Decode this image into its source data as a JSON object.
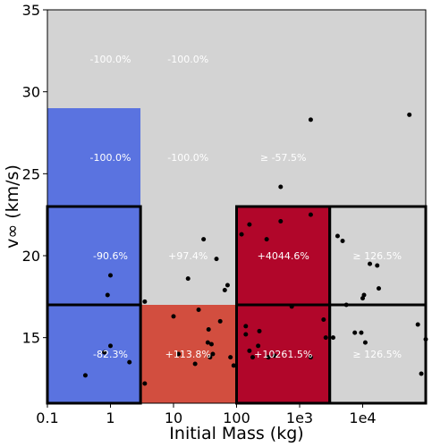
{
  "chart_data": {
    "type": "heatmap",
    "title": "",
    "xlabel": "Initial Mass (kg)",
    "ylabel": "v∞ (km/s)",
    "x_scale": "log",
    "xlim": [
      0.1,
      100000
    ],
    "ylim": [
      11,
      35
    ],
    "x_ticks": [
      {
        "value": 0.1,
        "label": "0.1"
      },
      {
        "value": 1,
        "label": "1"
      },
      {
        "value": 10,
        "label": "10"
      },
      {
        "value": 100,
        "label": "100"
      },
      {
        "value": 1000,
        "label": "1e3"
      },
      {
        "value": 10000,
        "label": "1e4"
      }
    ],
    "y_ticks": [
      {
        "value": 15,
        "label": "15"
      },
      {
        "value": 20,
        "label": "20"
      },
      {
        "value": 25,
        "label": "25"
      },
      {
        "value": 30,
        "label": "30"
      },
      {
        "value": 35,
        "label": "35"
      }
    ],
    "background_color": "#d3d3d3",
    "cells": [
      {
        "x0": 0.1,
        "x1": 3,
        "y0": 11,
        "y1": 17,
        "label": "-82.3%",
        "label_x": 1,
        "label_y": 14,
        "color": "#5a73e0",
        "outlined": true
      },
      {
        "x0": 0.1,
        "x1": 3,
        "y0": 17,
        "y1": 23,
        "label": "-90.6%",
        "label_x": 1,
        "label_y": 20,
        "color": "#5a73e0",
        "outlined": true
      },
      {
        "x0": 0.1,
        "x1": 3,
        "y0": 23,
        "y1": 29,
        "label": "-100.0%",
        "label_x": 1,
        "label_y": 26,
        "color": "#5a73e0",
        "outlined": false
      },
      {
        "x0": 0.1,
        "x1": 3,
        "y0": 29,
        "y1": 35,
        "label": "-100.0%",
        "label_x": 1,
        "label_y": 32,
        "color": "#d3d3d3",
        "outlined": false
      },
      {
        "x0": 3,
        "x1": 100,
        "y0": 11,
        "y1": 17,
        "label": "+113.8%",
        "label_x": 17,
        "label_y": 14,
        "color": "#d24e3f",
        "outlined": false
      },
      {
        "x0": 3,
        "x1": 100,
        "y0": 17,
        "y1": 23,
        "label": "+97.4%",
        "label_x": 17,
        "label_y": 20,
        "color": "#d3d3d3",
        "outlined": false
      },
      {
        "x0": 3,
        "x1": 100,
        "y0": 23,
        "y1": 29,
        "label": "-100.0%",
        "label_x": 17,
        "label_y": 26,
        "color": "#d3d3d3",
        "outlined": false
      },
      {
        "x0": 3,
        "x1": 100,
        "y0": 29,
        "y1": 35,
        "label": "-100.0%",
        "label_x": 17,
        "label_y": 32,
        "color": "#d3d3d3",
        "outlined": false
      },
      {
        "x0": 100,
        "x1": 3000,
        "y0": 11,
        "y1": 17,
        "label": "+10261.5%",
        "label_x": 550,
        "label_y": 14,
        "color": "#b1062a",
        "outlined": true
      },
      {
        "x0": 100,
        "x1": 3000,
        "y0": 17,
        "y1": 23,
        "label": "+4044.6%",
        "label_x": 550,
        "label_y": 20,
        "color": "#b1062a",
        "outlined": true
      },
      {
        "x0": 100,
        "x1": 3000,
        "y0": 23,
        "y1": 29,
        "label": "≥ -57.5%",
        "label_x": 550,
        "label_y": 26,
        "color": "#d3d3d3",
        "outlined": false
      },
      {
        "x0": 3000,
        "x1": 100000,
        "y0": 11,
        "y1": 17,
        "label": "≥ 126.5%",
        "label_x": 17000,
        "label_y": 14,
        "color": "#d3d3d3",
        "outlined": true
      },
      {
        "x0": 3000,
        "x1": 100000,
        "y0": 17,
        "y1": 23,
        "label": "≥ 126.5%",
        "label_x": 17000,
        "label_y": 20,
        "color": "#d3d3d3",
        "outlined": true
      }
    ],
    "points": [
      {
        "x": 0.4,
        "y": 12.7
      },
      {
        "x": 0.8,
        "y": 14.1
      },
      {
        "x": 1.0,
        "y": 14.5
      },
      {
        "x": 0.9,
        "y": 17.6
      },
      {
        "x": 1.0,
        "y": 18.8
      },
      {
        "x": 2.0,
        "y": 13.5
      },
      {
        "x": 3.5,
        "y": 17.2
      },
      {
        "x": 3.5,
        "y": 12.2
      },
      {
        "x": 10,
        "y": 16.3
      },
      {
        "x": 12,
        "y": 14.0
      },
      {
        "x": 17,
        "y": 18.6
      },
      {
        "x": 22,
        "y": 13.4
      },
      {
        "x": 25,
        "y": 16.7
      },
      {
        "x": 30,
        "y": 21.0
      },
      {
        "x": 35,
        "y": 14.7
      },
      {
        "x": 36,
        "y": 15.5
      },
      {
        "x": 38,
        "y": 13.8
      },
      {
        "x": 40,
        "y": 14.6
      },
      {
        "x": 42,
        "y": 14.0
      },
      {
        "x": 48,
        "y": 19.8
      },
      {
        "x": 55,
        "y": 16.0
      },
      {
        "x": 65,
        "y": 17.9
      },
      {
        "x": 72,
        "y": 18.2
      },
      {
        "x": 80,
        "y": 13.8
      },
      {
        "x": 90,
        "y": 13.3
      },
      {
        "x": 120,
        "y": 21.3
      },
      {
        "x": 140,
        "y": 15.7
      },
      {
        "x": 140,
        "y": 15.2
      },
      {
        "x": 160,
        "y": 14.2
      },
      {
        "x": 160,
        "y": 21.9
      },
      {
        "x": 180,
        "y": 13.8
      },
      {
        "x": 220,
        "y": 14.5
      },
      {
        "x": 230,
        "y": 15.4
      },
      {
        "x": 300,
        "y": 21.0
      },
      {
        "x": 320,
        "y": 13.8
      },
      {
        "x": 400,
        "y": 13.9
      },
      {
        "x": 500,
        "y": 22.1
      },
      {
        "x": 500,
        "y": 24.2
      },
      {
        "x": 750,
        "y": 16.9
      },
      {
        "x": 1500,
        "y": 22.5
      },
      {
        "x": 1500,
        "y": 28.3
      },
      {
        "x": 1500,
        "y": 13.8
      },
      {
        "x": 2400,
        "y": 16.1
      },
      {
        "x": 2600,
        "y": 15.0
      },
      {
        "x": 3400,
        "y": 15.0
      },
      {
        "x": 4000,
        "y": 21.2
      },
      {
        "x": 4800,
        "y": 20.9
      },
      {
        "x": 5500,
        "y": 17.0
      },
      {
        "x": 7500,
        "y": 15.3
      },
      {
        "x": 9500,
        "y": 15.3
      },
      {
        "x": 10000,
        "y": 17.4
      },
      {
        "x": 10500,
        "y": 17.6
      },
      {
        "x": 11000,
        "y": 14.7
      },
      {
        "x": 13000,
        "y": 19.5
      },
      {
        "x": 17000,
        "y": 19.4
      },
      {
        "x": 18000,
        "y": 18.0
      },
      {
        "x": 55000,
        "y": 28.6
      },
      {
        "x": 75000,
        "y": 15.8
      },
      {
        "x": 85000,
        "y": 12.8
      },
      {
        "x": 100000,
        "y": 14.9
      }
    ]
  }
}
